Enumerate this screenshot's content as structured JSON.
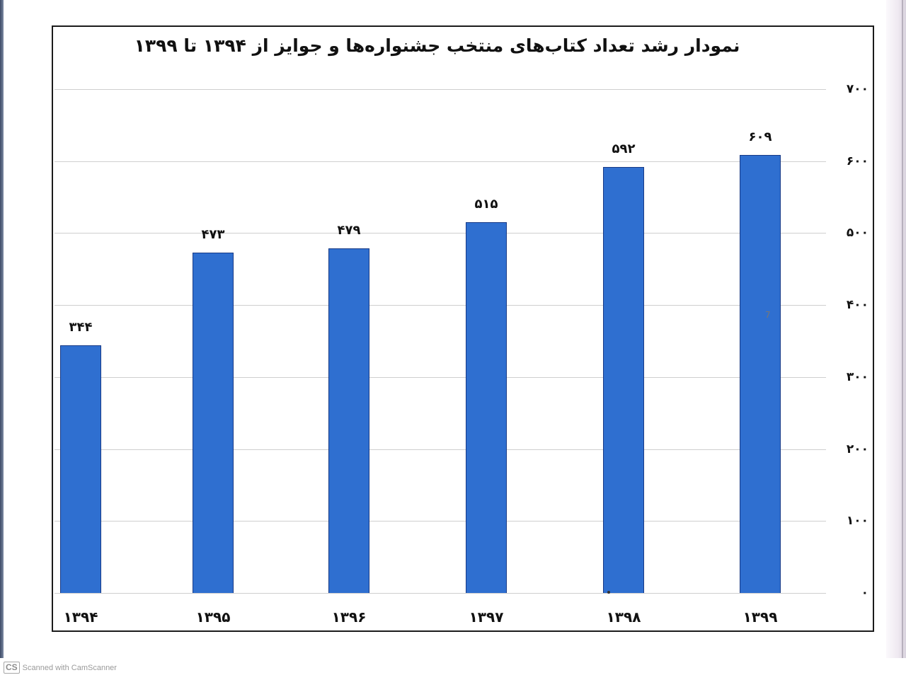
{
  "chart_data": {
    "type": "bar",
    "title": "نمودار رشد تعداد کتاب‌های منتخب جشنواره‌ها و جوایز از ۱۳۹۴ تا ۱۳۹۹",
    "categories": [
      "1394",
      "1395",
      "1396",
      "1397",
      "1398",
      "1399"
    ],
    "category_labels": [
      "۱۳۹۴",
      "۱۳۹۵",
      "۱۳۹۶",
      "۱۳۹۷",
      "۱۳۹۸",
      "۱۳۹۹"
    ],
    "values": [
      344,
      473,
      479,
      515,
      592,
      609
    ],
    "value_labels": [
      "۳۴۴",
      "۴۷۳",
      "۴۷۹",
      "۵۱۵",
      "۵۹۲",
      "۶۰۹"
    ],
    "xlabel": "",
    "ylabel": "",
    "ylim": [
      0,
      700
    ],
    "yticks": [
      0,
      100,
      200,
      300,
      400,
      500,
      600,
      700
    ],
    "ytick_labels": [
      "۰",
      "۱۰۰",
      "۲۰۰",
      "۳۰۰",
      "۴۰۰",
      "۵۰۰",
      "۶۰۰",
      "۷۰۰"
    ],
    "y_axis_position": "right",
    "grid": true,
    "legend": null,
    "bar_color": "#2f6fd0",
    "bar_edge_color": "#183a86"
  },
  "annotations": {
    "stray_mark": "7"
  },
  "watermark": {
    "logo": "CS",
    "text": "Scanned with CamScanner"
  }
}
